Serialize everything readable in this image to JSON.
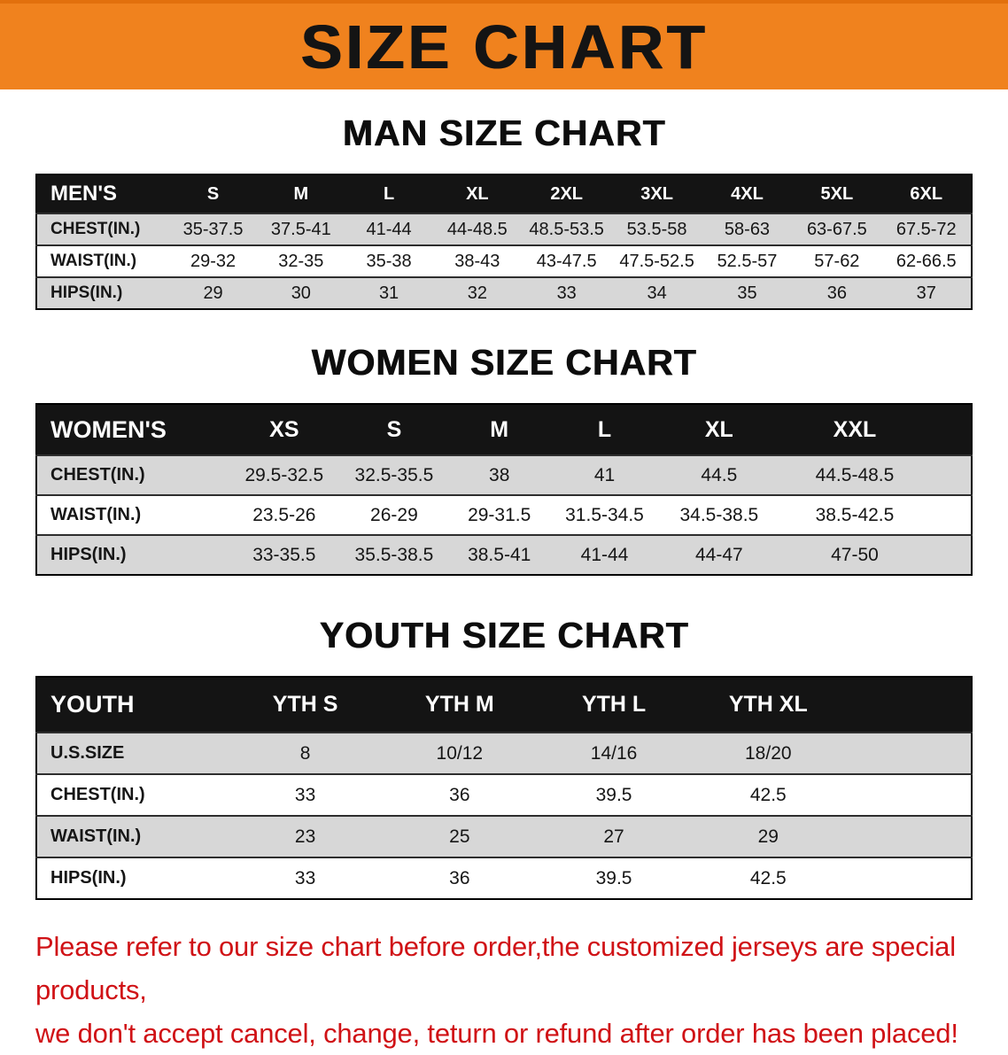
{
  "banner": {
    "title": "SIZE CHART"
  },
  "colors": {
    "banner_bg": "#f0821e",
    "table_header_bg": "#141414",
    "row_shade": "#d7d7d7",
    "footer_text": "#d01216"
  },
  "sections": [
    {
      "heading": "MAN SIZE CHART",
      "table": {
        "label": "MEN'S",
        "columns": [
          "S",
          "M",
          "L",
          "XL",
          "2XL",
          "3XL",
          "4XL",
          "5XL",
          "6XL"
        ],
        "rows": [
          {
            "label": "CHEST(IN.)",
            "values": [
              "35-37.5",
              "37.5-41",
              "41-44",
              "44-48.5",
              "48.5-53.5",
              "53.5-58",
              "58-63",
              "63-67.5",
              "67.5-72"
            ]
          },
          {
            "label": "WAIST(IN.)",
            "values": [
              "29-32",
              "32-35",
              "35-38",
              "38-43",
              "43-47.5",
              "47.5-52.5",
              "52.5-57",
              "57-62",
              "62-66.5"
            ]
          },
          {
            "label": "HIPS(IN.)",
            "values": [
              "29",
              "30",
              "31",
              "32",
              "33",
              "34",
              "35",
              "36",
              "37"
            ]
          }
        ]
      }
    },
    {
      "heading": "WOMEN SIZE CHART",
      "table": {
        "label": "WOMEN'S",
        "columns": [
          "XS",
          "S",
          "M",
          "L",
          "XL",
          "XXL"
        ],
        "rows": [
          {
            "label": "CHEST(IN.)",
            "values": [
              "29.5-32.5",
              "32.5-35.5",
              "38",
              "41",
              "44.5",
              "44.5-48.5"
            ]
          },
          {
            "label": "WAIST(IN.)",
            "values": [
              "23.5-26",
              "26-29",
              "29-31.5",
              "31.5-34.5",
              "34.5-38.5",
              "38.5-42.5"
            ]
          },
          {
            "label": "HIPS(IN.)",
            "values": [
              "33-35.5",
              "35.5-38.5",
              "38.5-41",
              "41-44",
              "44-47",
              "47-50"
            ]
          }
        ]
      }
    },
    {
      "heading": "YOUTH SIZE CHART",
      "table": {
        "label": "YOUTH",
        "columns": [
          "YTH S",
          "YTH M",
          "YTH L",
          "YTH XL"
        ],
        "rows": [
          {
            "label": "U.S.SIZE",
            "values": [
              "8",
              "10/12",
              "14/16",
              "18/20"
            ]
          },
          {
            "label": "CHEST(IN.)",
            "values": [
              "33",
              "36",
              "39.5",
              "42.5"
            ]
          },
          {
            "label": "WAIST(IN.)",
            "values": [
              "23",
              "25",
              "27",
              "29"
            ]
          },
          {
            "label": "HIPS(IN.)",
            "values": [
              "33",
              "36",
              "39.5",
              "42.5"
            ]
          }
        ]
      }
    }
  ],
  "footer": {
    "line1": "Please refer to our size chart before order,the customized jerseys are special products,",
    "line2": "we don't accept cancel, change, teturn or refund after order has been placed!"
  }
}
